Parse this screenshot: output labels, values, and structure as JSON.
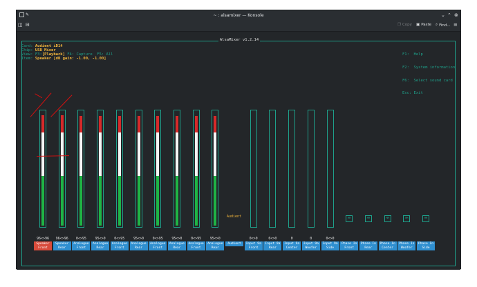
{
  "window": {
    "title": "~ : alsamixer — Konsole",
    "toolbar": {
      "copy": "Copy",
      "paste": "Paste",
      "find": "Find..."
    }
  },
  "app": {
    "title": "AlsaMixer v1.2.14"
  },
  "info": {
    "card_label": "Card:",
    "card": "Audient iD14",
    "chip_label": "Chip:",
    "chip": "USB Mixer",
    "view_label": "View:",
    "view_f3": "F3:",
    "view_playback": "[Playback]",
    "view_rest": "F4: Capture  F5: All",
    "item_label": "Item:",
    "item": "Speaker [dB gain: -1.00, -1.00]"
  },
  "keys": [
    "F1:  Help",
    "F2:  System information",
    "F6:  Select sound card",
    "Esc: Exit"
  ],
  "enum_value": "Audient",
  "channels": [
    {
      "vol": "96<>96",
      "line1": "Speaker",
      "line2": "Front",
      "selected": true,
      "level": 96,
      "kind": "fader"
    },
    {
      "vol": "96<>96",
      "line1": "Speaker",
      "line2": "Rear",
      "level": 96,
      "kind": "fader"
    },
    {
      "vol": "0<>95",
      "line1": "Analogue",
      "line2": "Front",
      "level": 95,
      "kind": "fader"
    },
    {
      "vol": "95<>0",
      "line1": "Analogue",
      "line2": "Rear",
      "level": 95,
      "kind": "fader"
    },
    {
      "vol": "0<>95",
      "line1": "Analogue",
      "line2": "Front",
      "level": 95,
      "kind": "fader"
    },
    {
      "vol": "95<>0",
      "line1": "Analogue",
      "line2": "Rear",
      "level": 95,
      "kind": "fader"
    },
    {
      "vol": "0<>95",
      "line1": "Analogue",
      "line2": "Front",
      "level": 95,
      "kind": "fader"
    },
    {
      "vol": "95<>0",
      "line1": "Analogue",
      "line2": "Rear",
      "level": 95,
      "kind": "fader"
    },
    {
      "vol": "0<>95",
      "line1": "Analogue",
      "line2": "Front",
      "level": 95,
      "kind": "fader"
    },
    {
      "vol": "95<>0",
      "line1": "Analogue",
      "line2": "Rear",
      "level": 95,
      "kind": "fader"
    },
    {
      "vol": "",
      "line1": "Audient",
      "line2": "",
      "kind": "enum"
    },
    {
      "vol": "0<>0",
      "line1": "Input 9a",
      "line2": "Front",
      "level": 0,
      "kind": "fader"
    },
    {
      "vol": "0<>0",
      "line1": "Input 9a",
      "line2": "Rear",
      "level": 0,
      "kind": "fader"
    },
    {
      "vol": "0",
      "line1": "Input 9a",
      "line2": "Center",
      "level": 0,
      "kind": "fader"
    },
    {
      "vol": "0",
      "line1": "Input 9a",
      "line2": "Woofer",
      "level": 0,
      "kind": "fader"
    },
    {
      "vol": "0<>0",
      "line1": "Input 9a",
      "line2": "Side",
      "level": 0,
      "kind": "fader"
    },
    {
      "vol": "",
      "line1": "Phase In",
      "line2": "Front",
      "cap": "MM",
      "kind": "switch"
    },
    {
      "vol": "",
      "line1": "Phase In",
      "line2": "Rear",
      "cap": "MM",
      "kind": "switch"
    },
    {
      "vol": "",
      "line1": "Phase In",
      "line2": "Center",
      "cap": "MM",
      "kind": "switch"
    },
    {
      "vol": "",
      "line1": "Phase In",
      "line2": "Woofer",
      "cap": "MM",
      "kind": "switch"
    },
    {
      "vol": "",
      "line1": "Phase In",
      "line2": "Side",
      "cap": "MM",
      "kind": "switch"
    }
  ],
  "colors": {
    "accent": "#1ea08a",
    "highlight": "#f4b73c",
    "label_bg": "#2f8fd0",
    "selected_bg": "#d84b3b"
  }
}
